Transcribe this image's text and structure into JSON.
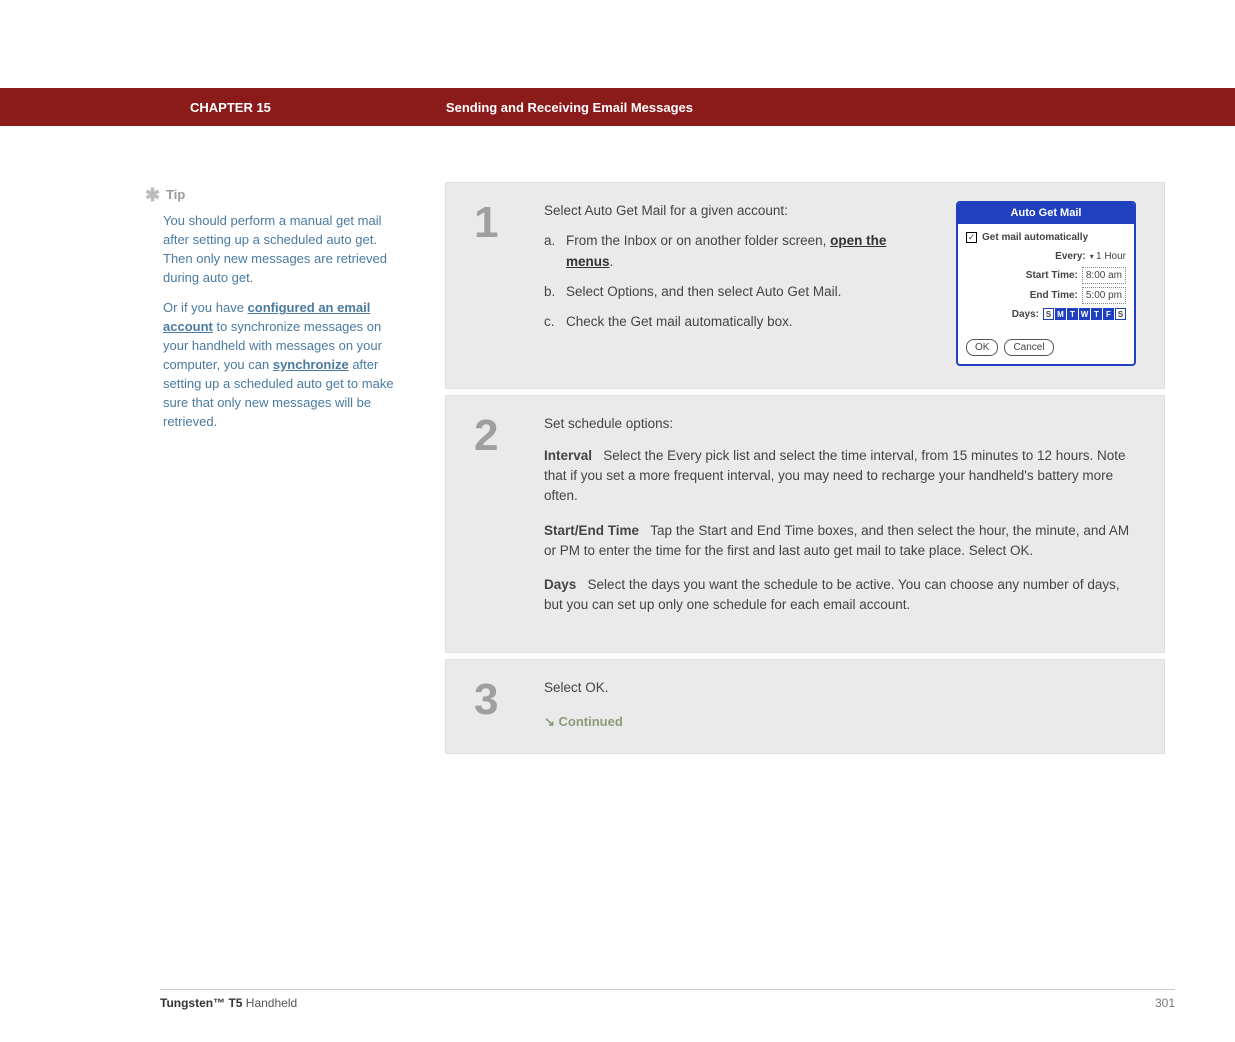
{
  "chapter_bar": {
    "chapter": "CHAPTER 15",
    "title": "Sending and Receiving Email Messages"
  },
  "sidebar": {
    "tip_label": "Tip",
    "p1_a": "You should perform a manual get mail after setting up a scheduled auto get. Then only new messages are retrieved during auto get.",
    "p2_pre": "Or if you have ",
    "p2_link1": "configured an email account",
    "p2_mid": " to synchronize messages on your handheld with messages on your computer, you can ",
    "p2_link2": "synchronize",
    "p2_post": " after setting up a scheduled auto get to make sure that only new messages will be retrieved."
  },
  "steps": {
    "s1": {
      "num": "1",
      "heading": "Select Auto Get Mail for a given account:",
      "a_pre": "From the Inbox or on another folder screen, ",
      "a_link": "open the menus",
      "a_post": ".",
      "b": "Select Options, and then select Auto Get Mail.",
      "c": "Check the Get mail automatically box."
    },
    "s2": {
      "num": "2",
      "heading": "Set schedule options:",
      "interval_label": "Interval",
      "interval_body": "Select the Every pick list and select the time interval, from 15 minutes to 12 hours. Note that if you set a more frequent interval, you may need to recharge your handheld's battery more often.",
      "startend_label": "Start/End Time",
      "startend_body": "Tap the Start and End Time boxes, and then select the hour, the minute, and AM or PM to enter the time for the first and last auto get mail to take place. Select OK.",
      "days_label": "Days",
      "days_body": "Select the days you want the schedule to be active. You can choose any number of days, but you can set up only one schedule for each email account."
    },
    "s3": {
      "num": "3",
      "heading": "Select OK.",
      "continued": "Continued"
    }
  },
  "palm": {
    "title": "Auto Get Mail",
    "checkbox_label": "Get mail automatically",
    "every_label": "Every:",
    "every_value": "1 Hour",
    "start_label": "Start Time:",
    "start_value": "8:00 am",
    "end_label": "End Time:",
    "end_value": "5:00 pm",
    "days_label": "Days:",
    "days": [
      "S",
      "M",
      "T",
      "W",
      "T",
      "F",
      "S"
    ],
    "days_on": [
      false,
      true,
      true,
      true,
      true,
      true,
      false
    ],
    "ok": "OK",
    "cancel": "Cancel"
  },
  "footer": {
    "product_bold": "Tungsten™ T5",
    "product_rest": " Handheld",
    "page": "301"
  },
  "colors": {
    "bar_bg": "#8b1a1a",
    "step_bg": "#eaeaea",
    "tip_text": "#4a7aa0",
    "palm_blue": "#2040c0"
  }
}
